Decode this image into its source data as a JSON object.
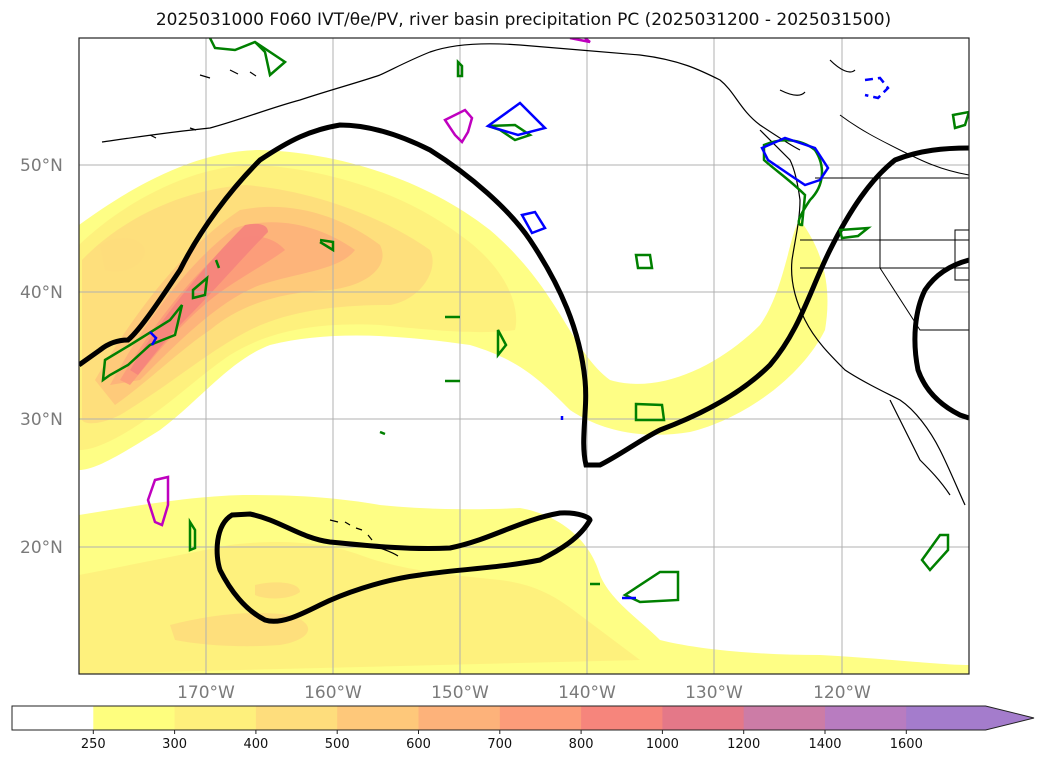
{
  "title": "2025031000 F060 IVT/θe/PV, river basin precipitation PC (2025031200 - 2025031500)",
  "map": {
    "projection": "lat-lon",
    "lon_range": [
      -180,
      -110
    ],
    "lat_range": [
      10,
      60
    ],
    "gridlines": true
  },
  "lat_labels": [
    {
      "lat": 50,
      "text": "50°N"
    },
    {
      "lat": 40,
      "text": "40°N"
    },
    {
      "lat": 30,
      "text": "30°N"
    },
    {
      "lat": 20,
      "text": "20°N"
    }
  ],
  "lon_labels": [
    {
      "lon": -170,
      "text": "170°W"
    },
    {
      "lon": -160,
      "text": "160°W"
    },
    {
      "lon": -150,
      "text": "150°W"
    },
    {
      "lon": -140,
      "text": "140°W"
    },
    {
      "lon": -130,
      "text": "130°W"
    },
    {
      "lon": -120,
      "text": "120°W"
    }
  ],
  "colorbar": {
    "levels": [
      "250",
      "300",
      "400",
      "500",
      "600",
      "700",
      "800",
      "1000",
      "1200",
      "1400",
      "1600"
    ],
    "colors": [
      "#ffffff",
      "#fefe7e",
      "#fef07c",
      "#fedd7c",
      "#fec87a",
      "#fdb27a",
      "#fc9c7a",
      "#f6857c",
      "#e47888",
      "#cc7ca6",
      "#b87cc0",
      "#a47ccc"
    ],
    "extend": "max"
  },
  "colors": {
    "ivt_contour": "#000000",
    "green_contour": "#008000",
    "blue_contour": "#0000ff",
    "magenta_contour": "#bf00bf",
    "coastline": "#000000",
    "grid": "#b0b0b0"
  }
}
